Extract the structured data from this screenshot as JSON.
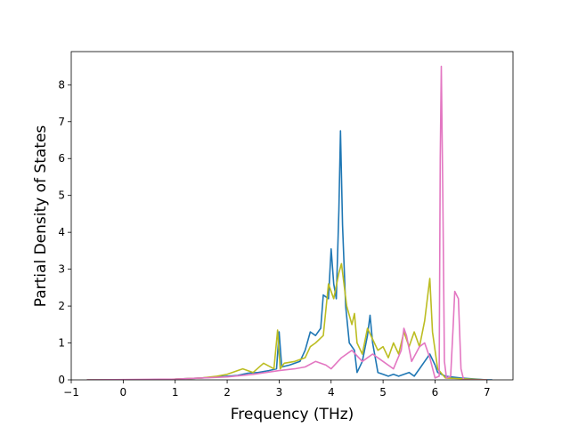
{
  "chart_data": {
    "type": "line",
    "title": "",
    "xlabel": "Frequency (THz)",
    "ylabel": "Partial Density of States",
    "xlim": [
      -1.0,
      7.5
    ],
    "ylim": [
      0,
      8.9
    ],
    "x_ticks": [
      -1,
      0,
      1,
      2,
      3,
      4,
      5,
      6,
      7
    ],
    "y_ticks": [
      0,
      1,
      2,
      3,
      4,
      5,
      6,
      7,
      8
    ],
    "grid": false,
    "legend": "none",
    "series": [
      {
        "color": "#1f77b4",
        "points": [
          [
            -0.7,
            0
          ],
          [
            0.3,
            0
          ],
          [
            1.0,
            0.02
          ],
          [
            1.5,
            0.05
          ],
          [
            1.8,
            0.08
          ],
          [
            2.0,
            0.1
          ],
          [
            2.2,
            0.12
          ],
          [
            2.4,
            0.18
          ],
          [
            2.6,
            0.2
          ],
          [
            2.8,
            0.25
          ],
          [
            2.95,
            0.3
          ],
          [
            3.0,
            1.3
          ],
          [
            3.05,
            0.35
          ],
          [
            3.2,
            0.4
          ],
          [
            3.4,
            0.5
          ],
          [
            3.5,
            0.8
          ],
          [
            3.6,
            1.3
          ],
          [
            3.7,
            1.2
          ],
          [
            3.8,
            1.4
          ],
          [
            3.85,
            2.3
          ],
          [
            3.95,
            2.2
          ],
          [
            4.0,
            3.55
          ],
          [
            4.05,
            2.6
          ],
          [
            4.1,
            2.2
          ],
          [
            4.15,
            4.6
          ],
          [
            4.18,
            6.75
          ],
          [
            4.22,
            4.2
          ],
          [
            4.28,
            2.0
          ],
          [
            4.35,
            1.0
          ],
          [
            4.45,
            0.8
          ],
          [
            4.5,
            0.2
          ],
          [
            4.6,
            0.5
          ],
          [
            4.7,
            1.2
          ],
          [
            4.75,
            1.75
          ],
          [
            4.8,
            1.0
          ],
          [
            4.9,
            0.2
          ],
          [
            5.0,
            0.15
          ],
          [
            5.1,
            0.1
          ],
          [
            5.2,
            0.15
          ],
          [
            5.3,
            0.1
          ],
          [
            5.5,
            0.2
          ],
          [
            5.6,
            0.1
          ],
          [
            5.7,
            0.3
          ],
          [
            5.8,
            0.5
          ],
          [
            5.9,
            0.7
          ],
          [
            6.0,
            0.4
          ],
          [
            6.05,
            0.2
          ],
          [
            6.2,
            0.1
          ],
          [
            6.5,
            0.05
          ],
          [
            7.0,
            0
          ],
          [
            7.1,
            0
          ]
        ]
      },
      {
        "color": "#bcbd22",
        "points": [
          [
            -0.7,
            0
          ],
          [
            0.5,
            0
          ],
          [
            1.0,
            0.02
          ],
          [
            1.5,
            0.05
          ],
          [
            1.8,
            0.1
          ],
          [
            2.0,
            0.15
          ],
          [
            2.2,
            0.25
          ],
          [
            2.3,
            0.3
          ],
          [
            2.5,
            0.2
          ],
          [
            2.7,
            0.45
          ],
          [
            2.9,
            0.3
          ],
          [
            2.97,
            1.35
          ],
          [
            3.02,
            0.3
          ],
          [
            3.1,
            0.45
          ],
          [
            3.3,
            0.5
          ],
          [
            3.5,
            0.6
          ],
          [
            3.6,
            0.9
          ],
          [
            3.7,
            1.0
          ],
          [
            3.85,
            1.2
          ],
          [
            3.95,
            2.6
          ],
          [
            4.05,
            2.2
          ],
          [
            4.15,
            2.9
          ],
          [
            4.2,
            3.15
          ],
          [
            4.3,
            2.0
          ],
          [
            4.4,
            1.5
          ],
          [
            4.45,
            1.8
          ],
          [
            4.5,
            1.0
          ],
          [
            4.6,
            0.7
          ],
          [
            4.7,
            1.4
          ],
          [
            4.8,
            1.1
          ],
          [
            4.9,
            0.8
          ],
          [
            5.0,
            0.9
          ],
          [
            5.1,
            0.6
          ],
          [
            5.2,
            1.0
          ],
          [
            5.3,
            0.7
          ],
          [
            5.4,
            1.3
          ],
          [
            5.5,
            0.9
          ],
          [
            5.6,
            1.3
          ],
          [
            5.7,
            0.9
          ],
          [
            5.8,
            1.6
          ],
          [
            5.9,
            2.75
          ],
          [
            5.95,
            1.3
          ],
          [
            6.05,
            0.3
          ],
          [
            6.2,
            0.05
          ],
          [
            7.0,
            0
          ]
        ]
      },
      {
        "color": "#e377c2",
        "points": [
          [
            -0.7,
            0
          ],
          [
            1.0,
            0.02
          ],
          [
            2.0,
            0.08
          ],
          [
            2.5,
            0.15
          ],
          [
            3.0,
            0.25
          ],
          [
            3.3,
            0.3
          ],
          [
            3.5,
            0.35
          ],
          [
            3.7,
            0.5
          ],
          [
            3.9,
            0.4
          ],
          [
            4.0,
            0.3
          ],
          [
            4.2,
            0.6
          ],
          [
            4.4,
            0.8
          ],
          [
            4.6,
            0.5
          ],
          [
            4.8,
            0.7
          ],
          [
            5.0,
            0.5
          ],
          [
            5.2,
            0.3
          ],
          [
            5.35,
            0.8
          ],
          [
            5.4,
            1.4
          ],
          [
            5.45,
            1.2
          ],
          [
            5.55,
            0.5
          ],
          [
            5.7,
            0.9
          ],
          [
            5.8,
            1.0
          ],
          [
            5.9,
            0.6
          ],
          [
            6.0,
            0.05
          ],
          [
            6.08,
            0.1
          ],
          [
            6.1,
            6.0
          ],
          [
            6.12,
            8.5
          ],
          [
            6.15,
            5.0
          ],
          [
            6.18,
            0.5
          ],
          [
            6.22,
            0.05
          ],
          [
            6.3,
            0.1
          ],
          [
            6.35,
            1.5
          ],
          [
            6.38,
            2.4
          ],
          [
            6.45,
            2.2
          ],
          [
            6.5,
            0.3
          ],
          [
            6.55,
            0
          ],
          [
            7.0,
            0
          ]
        ]
      }
    ]
  }
}
